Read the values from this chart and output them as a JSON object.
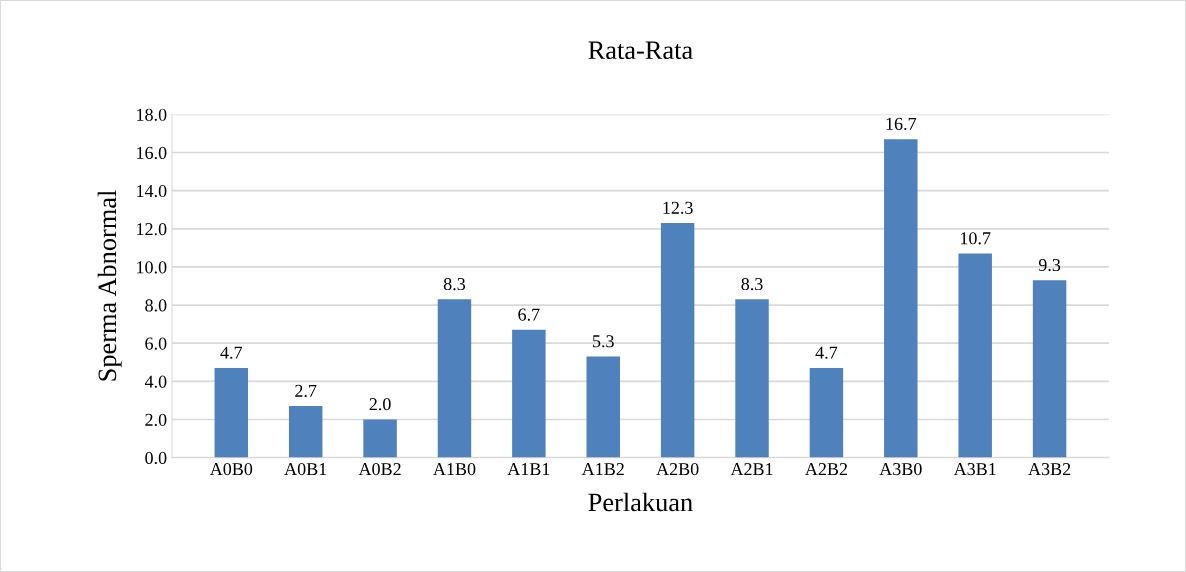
{
  "chart_data": {
    "type": "bar",
    "title": "Rata-Rata",
    "xlabel": "Perlakuan",
    "ylabel": "Sperma Abnormal",
    "categories": [
      "A0B0",
      "A0B1",
      "A0B2",
      "A1B0",
      "A1B1",
      "A1B2",
      "A2B0",
      "A2B1",
      "A2B2",
      "A3B0",
      "A3B1",
      "A3B2"
    ],
    "values": [
      4.7,
      2.7,
      2.0,
      8.3,
      6.7,
      5.3,
      12.3,
      8.3,
      4.7,
      16.7,
      10.7,
      9.3
    ],
    "value_labels": [
      "4.7",
      "2.7",
      "2.0",
      "8.3",
      "6.7",
      "5.3",
      "12.3",
      "8.3",
      "4.7",
      "16.7",
      "10.7",
      "9.3"
    ],
    "color": "#4f81bd",
    "ylim": [
      0,
      18
    ],
    "yticks": [
      {
        "value": 0,
        "label": "0.0"
      },
      {
        "value": 2,
        "label": "2.0"
      },
      {
        "value": 4,
        "label": "4.0"
      },
      {
        "value": 6,
        "label": "6.0"
      },
      {
        "value": 8,
        "label": "8.0"
      },
      {
        "value": 10,
        "label": "10.0"
      },
      {
        "value": 12,
        "label": "12.0"
      },
      {
        "value": 14,
        "label": "14.0"
      },
      {
        "value": 16,
        "label": "16.0"
      },
      {
        "value": 18,
        "label": "18.0"
      }
    ],
    "grid": "y"
  }
}
